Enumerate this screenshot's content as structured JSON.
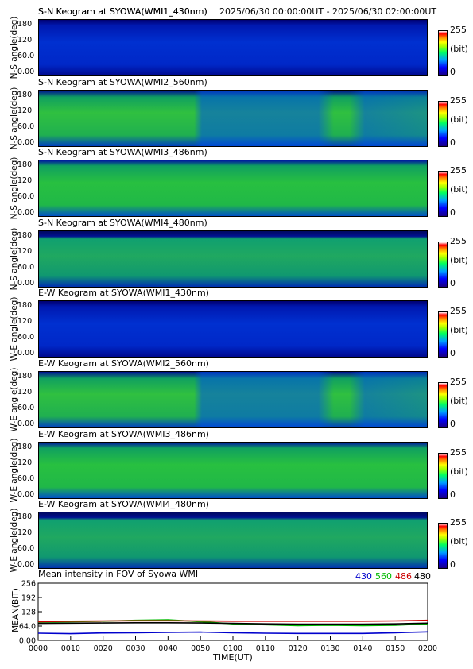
{
  "header": {
    "title": "S-N Keogram at SYOWA(WMI1_430nm)",
    "time_range": "2025/06/30 00:00:00UT - 2025/06/30 02:00:00UT"
  },
  "panels": [
    {
      "title": "S-N Keogram at SYOWA(WMI1_430nm)",
      "ylabel": "N-S angle(deg)",
      "style": "blue"
    },
    {
      "title": "S-N Keogram at SYOWA(WMI2_560nm)",
      "ylabel": "N-S angle(deg)",
      "style": "green-patchy"
    },
    {
      "title": "S-N Keogram at SYOWA(WMI3_486nm)",
      "ylabel": "N-S angle(deg)",
      "style": "green"
    },
    {
      "title": "S-N Keogram at SYOWA(WMI4_480nm)",
      "ylabel": "N-S angle(deg)",
      "style": "green-dim"
    },
    {
      "title": "E-W Keogram at SYOWA(WMI1_430nm)",
      "ylabel": "W-E angle(deg)",
      "style": "blue"
    },
    {
      "title": "E-W Keogram at SYOWA(WMI2_560nm)",
      "ylabel": "W-E angle(deg)",
      "style": "green-patchy"
    },
    {
      "title": "E-W Keogram at SYOWA(WMI3_486nm)",
      "ylabel": "W-E angle(deg)",
      "style": "green"
    },
    {
      "title": "E-W Keogram at SYOWA(WMI4_480nm)",
      "ylabel": "W-E angle(deg)",
      "style": "green-dim"
    }
  ],
  "y_ticks": [
    "180",
    "120",
    "60.0",
    "0.00"
  ],
  "colorbar": {
    "max": "255",
    "unit": "(bit)",
    "min": "0"
  },
  "mean_panel": {
    "title": "Mean intensity in FOV of Syowa WMI",
    "ylabel": "MEAN(BIT)",
    "y_ticks": [
      "256",
      "192",
      "128",
      "64.0",
      "0.00"
    ],
    "legend": [
      {
        "label": "430",
        "color": "#0000cc"
      },
      {
        "label": "560",
        "color": "#00bb00"
      },
      {
        "label": "486",
        "color": "#cc0000"
      },
      {
        "label": "480",
        "color": "#000000"
      }
    ]
  },
  "x_ticks": [
    "0000",
    "0010",
    "0020",
    "0030",
    "0040",
    "0050",
    "0100",
    "0110",
    "0120",
    "0130",
    "0140",
    "0150",
    "0200"
  ],
  "xlabel": "TIME(UT)",
  "chart_data": {
    "type": "line",
    "title": "Mean intensity in FOV of Syowa WMI",
    "xlabel": "TIME(UT)",
    "ylabel": "MEAN(BIT)",
    "x": [
      "0000",
      "0010",
      "0020",
      "0030",
      "0040",
      "0050",
      "0100",
      "0110",
      "0120",
      "0130",
      "0140",
      "0150",
      "0200"
    ],
    "ylim": [
      0,
      256
    ],
    "series": [
      {
        "name": "430",
        "color": "#0000cc",
        "values": [
          32,
          30,
          33,
          34,
          36,
          37,
          34,
          32,
          31,
          31,
          31,
          34,
          38
        ]
      },
      {
        "name": "560",
        "color": "#00bb00",
        "values": [
          82,
          84,
          86,
          90,
          92,
          84,
          74,
          70,
          66,
          68,
          66,
          68,
          74
        ]
      },
      {
        "name": "486",
        "color": "#cc0000",
        "values": [
          84,
          86,
          87,
          88,
          88,
          87,
          86,
          86,
          86,
          86,
          86,
          87,
          90
        ]
      },
      {
        "name": "480",
        "color": "#000000",
        "values": [
          76,
          77,
          78,
          79,
          79,
          78,
          76,
          74,
          73,
          73,
          73,
          74,
          77
        ]
      }
    ]
  }
}
